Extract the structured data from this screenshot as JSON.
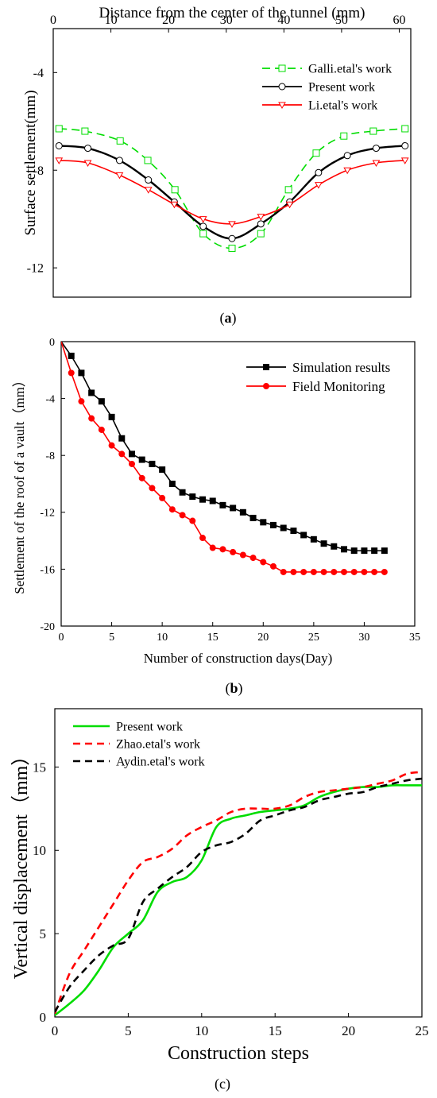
{
  "colors": {
    "black": "#000000",
    "red": "#ff0000",
    "green": "#00dd00"
  },
  "chart_data": [
    {
      "type": "line",
      "panel_label": "a",
      "xlabel": "Distance from the center of the tunnel (mm)",
      "ylabel": "Surface settlement(mm)",
      "xlim": [
        0,
        62
      ],
      "ylim": [
        -13.2,
        -2.2
      ],
      "xticks": [
        0,
        10,
        20,
        30,
        40,
        50,
        60
      ],
      "yticks": [
        -4,
        -8,
        -12
      ],
      "grid": false,
      "legend_position": "top-right",
      "series": [
        {
          "name": "Galli.etal's work",
          "color": "#00dd00",
          "dash": "dash",
          "marker": "square",
          "x": [
            1,
            5.5,
            11.6,
            16.4,
            21.1,
            26,
            31,
            36,
            40.8,
            45.6,
            50.4,
            55.5,
            61
          ],
          "y": [
            -6.3,
            -6.4,
            -6.8,
            -7.6,
            -8.8,
            -10.6,
            -11.2,
            -10.6,
            -8.8,
            -7.3,
            -6.6,
            -6.4,
            -6.3
          ],
          "markers_x": [
            1,
            5.5,
            11.6,
            16.4,
            21.1,
            26,
            31,
            36,
            40.8,
            45.6,
            50.4,
            55.5,
            61
          ]
        },
        {
          "name": "Present work",
          "color": "#000000",
          "dash": "solid",
          "marker": "circle",
          "x": [
            1,
            6,
            11.5,
            16.5,
            21,
            26,
            31,
            36,
            41,
            46,
            51,
            56,
            61
          ],
          "y": [
            -7.0,
            -7.1,
            -7.6,
            -8.4,
            -9.3,
            -10.3,
            -10.8,
            -10.2,
            -9.3,
            -8.1,
            -7.4,
            -7.1,
            -7.0
          ],
          "markers_x": [
            1,
            6,
            11.5,
            16.5,
            21,
            26,
            31,
            36,
            41,
            46,
            51,
            56,
            61
          ]
        },
        {
          "name": "Li.etal's work",
          "color": "#ff0000",
          "dash": "solid",
          "marker": "triangle-down",
          "x": [
            1,
            6,
            11.5,
            16.5,
            21,
            26,
            31,
            36,
            41,
            46,
            51,
            56,
            61
          ],
          "y": [
            -7.6,
            -7.7,
            -8.2,
            -8.8,
            -9.4,
            -10.0,
            -10.2,
            -9.9,
            -9.4,
            -8.6,
            -8.0,
            -7.7,
            -7.6
          ],
          "markers_x": [
            1,
            6,
            11.5,
            16.5,
            21,
            26,
            31,
            36,
            41,
            46,
            51,
            56,
            61
          ]
        }
      ]
    },
    {
      "type": "line",
      "panel_label": "b",
      "xlabel": "Number of construction days(Day)",
      "ylabel": "Settlement of the roof of a vault（mm）",
      "xlim": [
        0,
        35
      ],
      "ylim": [
        -20,
        0
      ],
      "xticks": [
        0,
        5,
        10,
        15,
        20,
        25,
        30,
        35
      ],
      "yticks": [
        0,
        -4,
        -8,
        -12,
        -16,
        -20
      ],
      "grid": false,
      "legend_position": "top-right",
      "series": [
        {
          "name": "Simulation results",
          "color": "#000000",
          "dash": "solid",
          "marker": "square",
          "x": [
            0,
            1,
            2,
            3,
            4,
            5,
            6,
            7,
            8,
            9,
            10,
            11,
            12,
            13,
            14,
            15,
            16,
            17,
            18,
            19,
            20,
            21,
            22,
            23,
            24,
            25,
            26,
            27,
            28,
            29,
            30,
            31,
            32
          ],
          "y": [
            0,
            -1.0,
            -2.2,
            -3.6,
            -4.2,
            -5.3,
            -6.8,
            -7.9,
            -8.3,
            -8.6,
            -9.0,
            -10.0,
            -10.6,
            -10.9,
            -11.1,
            -11.2,
            -11.5,
            -11.7,
            -12.0,
            -12.4,
            -12.7,
            -12.9,
            -13.1,
            -13.3,
            -13.6,
            -13.9,
            -14.2,
            -14.4,
            -14.6,
            -14.7,
            -14.7,
            -14.7,
            -14.7
          ],
          "markers_x": [
            1,
            2,
            3,
            4,
            5,
            6,
            7,
            8,
            9,
            10,
            11,
            12,
            13,
            14,
            15,
            16,
            17,
            18,
            19,
            20,
            21,
            22,
            23,
            24,
            25,
            26,
            27,
            28,
            29,
            30,
            31,
            32
          ]
        },
        {
          "name": "Field Monitoring",
          "color": "#ff0000",
          "dash": "solid",
          "marker": "circle",
          "x": [
            0,
            1,
            2,
            3,
            4,
            5,
            6,
            7,
            8,
            9,
            10,
            11,
            12,
            13,
            14,
            15,
            16,
            17,
            18,
            19,
            20,
            21,
            22,
            23,
            24,
            25,
            26,
            27,
            28,
            29,
            30,
            31,
            32
          ],
          "y": [
            0,
            -2.2,
            -4.2,
            -5.4,
            -6.2,
            -7.3,
            -7.9,
            -8.6,
            -9.6,
            -10.3,
            -11.0,
            -11.8,
            -12.2,
            -12.6,
            -13.8,
            -14.5,
            -14.6,
            -14.8,
            -15.0,
            -15.2,
            -15.5,
            -15.8,
            -16.2,
            -16.2,
            -16.2,
            -16.2,
            -16.2,
            -16.2,
            -16.2,
            -16.2,
            -16.2,
            -16.2,
            -16.2
          ],
          "markers_x": [
            1,
            2,
            3,
            4,
            5,
            6,
            7,
            8,
            9,
            10,
            11,
            12,
            13,
            14,
            15,
            16,
            17,
            18,
            19,
            20,
            21,
            22,
            23,
            24,
            25,
            26,
            27,
            28,
            29,
            30,
            31,
            32
          ]
        }
      ]
    },
    {
      "type": "line",
      "panel_label": "c",
      "xlabel": "Construction steps",
      "ylabel": "Vertical displacement（mm）",
      "xlim": [
        0,
        25
      ],
      "ylim": [
        0,
        18.5
      ],
      "xticks": [
        0,
        5,
        10,
        15,
        20,
        25
      ],
      "yticks": [
        0,
        5,
        10,
        15
      ],
      "grid": false,
      "legend_position": "top-left",
      "series": [
        {
          "name": "Present work",
          "color": "#00dd00",
          "dash": "solid",
          "marker": "none",
          "x": [
            0,
            1,
            2,
            3,
            4,
            5,
            6,
            7,
            8,
            9,
            10,
            11,
            12,
            13,
            14,
            15,
            16,
            17,
            18,
            19,
            20,
            21,
            22,
            23,
            24,
            25
          ],
          "y": [
            0.1,
            0.8,
            1.6,
            2.8,
            4.2,
            5.0,
            5.8,
            7.5,
            8.1,
            8.4,
            9.4,
            11.4,
            11.9,
            12.1,
            12.3,
            12.4,
            12.5,
            12.7,
            13.2,
            13.5,
            13.7,
            13.8,
            13.8,
            13.9,
            13.9,
            13.9
          ]
        },
        {
          "name": "Zhao.etal's work",
          "color": "#ff0000",
          "dash": "dash",
          "marker": "none",
          "x": [
            0,
            1,
            2,
            3,
            4,
            5,
            6,
            7,
            8,
            9,
            10,
            11,
            12,
            13,
            14,
            15,
            16,
            17,
            18,
            19,
            20,
            21,
            22,
            23,
            24,
            25
          ],
          "y": [
            0.2,
            2.6,
            4.0,
            5.4,
            6.8,
            8.2,
            9.3,
            9.6,
            10.1,
            10.9,
            11.4,
            11.8,
            12.3,
            12.5,
            12.5,
            12.5,
            12.7,
            13.2,
            13.5,
            13.6,
            13.7,
            13.8,
            14.0,
            14.2,
            14.6,
            14.7
          ]
        },
        {
          "name": "Aydin.etal's work",
          "color": "#000000",
          "dash": "dash",
          "marker": "none",
          "x": [
            0,
            1,
            2,
            3,
            4,
            5,
            6,
            7,
            8,
            9,
            10,
            11,
            12,
            13,
            14,
            15,
            16,
            17,
            18,
            19,
            20,
            21,
            22,
            23,
            24,
            25
          ],
          "y": [
            0.3,
            1.8,
            2.8,
            3.7,
            4.3,
            4.7,
            6.9,
            7.7,
            8.4,
            9.0,
            9.9,
            10.3,
            10.5,
            11.0,
            11.8,
            12.1,
            12.4,
            12.6,
            13.0,
            13.2,
            13.4,
            13.5,
            13.8,
            14.0,
            14.2,
            14.3
          ]
        }
      ]
    }
  ]
}
